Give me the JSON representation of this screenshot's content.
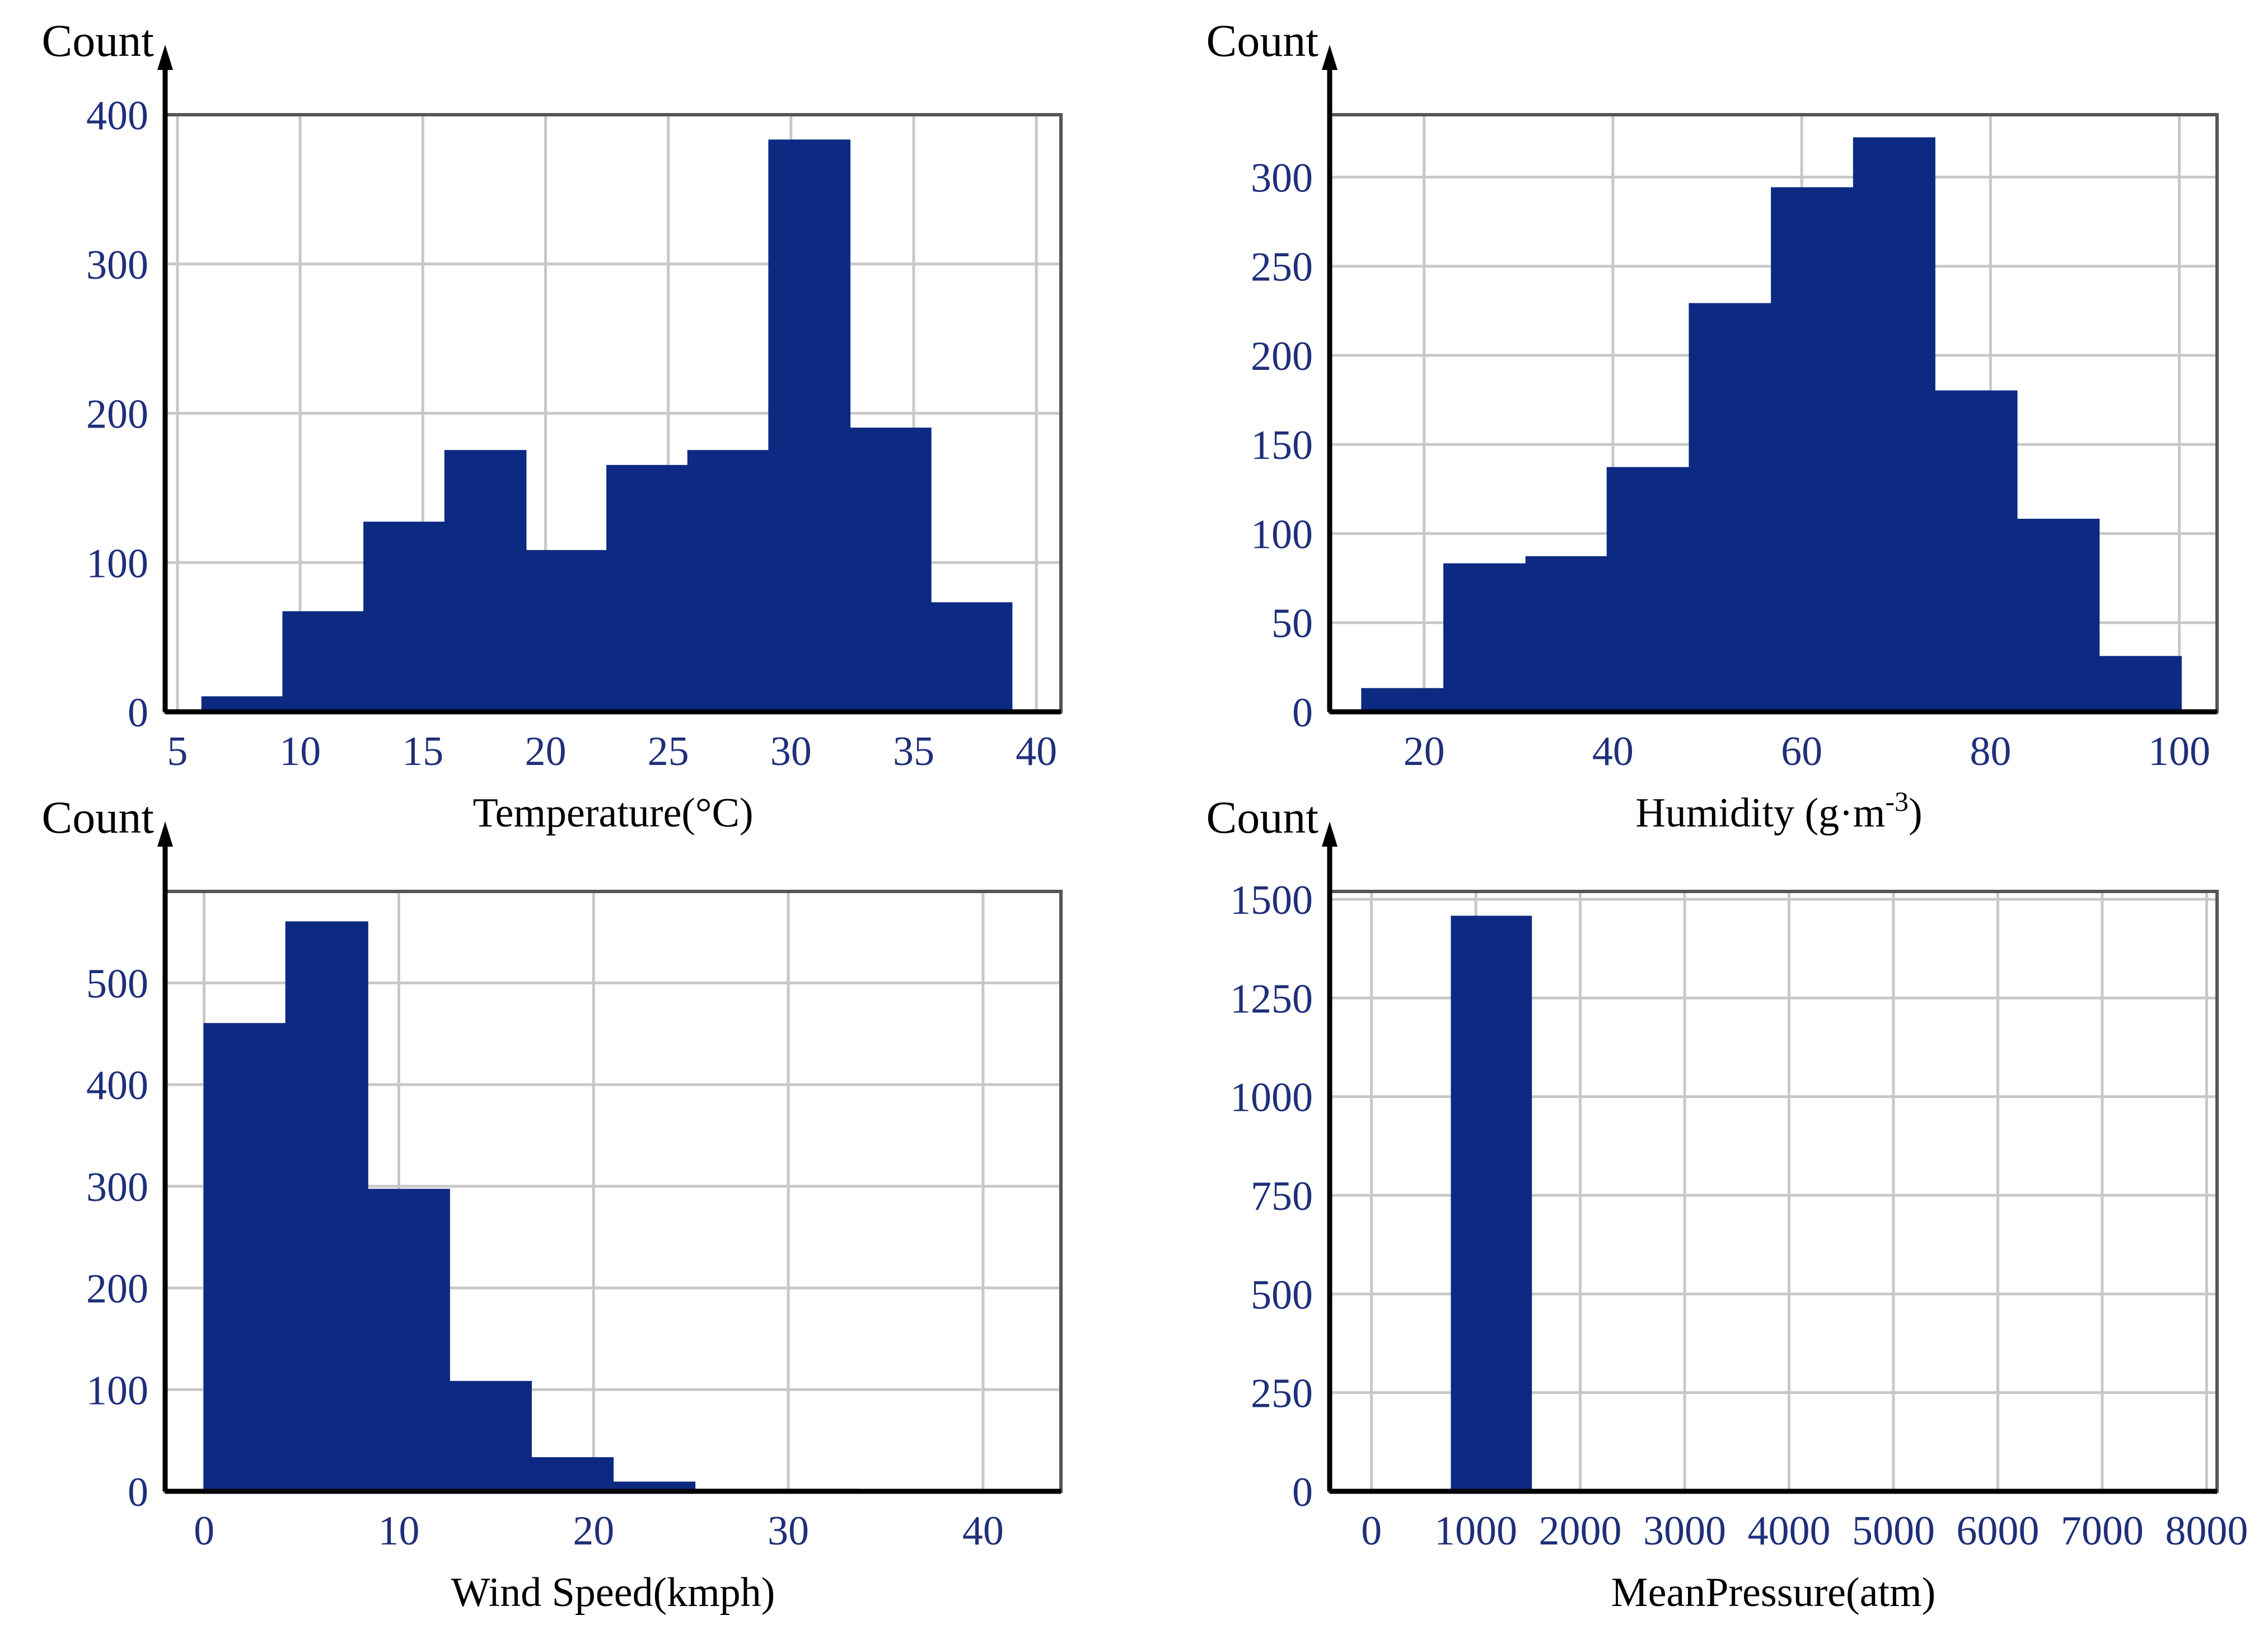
{
  "colors": {
    "bar": "#0c2a82",
    "grid": "#c8c8c8",
    "tick": "#1f2f7a"
  },
  "chart_data": [
    {
      "type": "bar",
      "title": "",
      "ylabel": "Count",
      "xlabel": "Temperature(°C)",
      "bin_edges": [
        6,
        9.3,
        12.6,
        15.9,
        19.2,
        22.5,
        25.8,
        29.1,
        32.4,
        35.7,
        39
      ],
      "values": [
        10,
        67,
        127,
        175,
        108,
        165,
        175,
        383,
        190,
        73
      ],
      "xlim": [
        4.5,
        41
      ],
      "ylim": [
        0,
        400
      ],
      "xticks": [
        5,
        10,
        15,
        20,
        25,
        30,
        35,
        40
      ],
      "yticks": [
        0,
        100,
        200,
        300,
        400
      ]
    },
    {
      "type": "bar",
      "title": "",
      "ylabel": "Count",
      "xlabel": "Humidity (g·m",
      "xlabel_sup": "-3",
      "xlabel_end": ")",
      "bin_edges": [
        13.4,
        22.1,
        30.8,
        39.4,
        48.1,
        56.8,
        65.5,
        74.1,
        82.8,
        91.5,
        100.2
      ],
      "values": [
        13,
        83,
        87,
        137,
        229,
        294,
        322,
        180,
        108,
        31
      ],
      "xlim": [
        10,
        104
      ],
      "ylim": [
        0,
        335
      ],
      "xticks": [
        20,
        40,
        60,
        80,
        100
      ],
      "yticks": [
        0,
        50,
        100,
        150,
        200,
        250,
        300
      ]
    },
    {
      "type": "bar",
      "title": "",
      "ylabel": "Count",
      "xlabel": "Wind Speed(kmph)",
      "bin_edges": [
        0,
        4.2,
        8.4,
        12.6,
        16.8,
        21.0,
        25.2,
        29.4,
        33.6,
        37.8,
        42
      ],
      "values": [
        460,
        560,
        297,
        108,
        33,
        9,
        2,
        2,
        0,
        1
      ],
      "xlim": [
        -2,
        44
      ],
      "ylim": [
        0,
        590
      ],
      "xticks": [
        0,
        10,
        20,
        30,
        40
      ],
      "yticks": [
        0,
        100,
        200,
        300,
        400,
        500
      ]
    },
    {
      "type": "bar",
      "title": "",
      "ylabel": "Count",
      "xlabel": "MeanPressure(atm)",
      "bin_edges": [
        0,
        766,
        1532
      ],
      "values": [
        5,
        1457
      ],
      "xlim": [
        -400,
        8100
      ],
      "ylim": [
        0,
        1520
      ],
      "xticks": [
        0,
        1000,
        2000,
        3000,
        4000,
        5000,
        6000,
        7000,
        8000
      ],
      "yticks": [
        0,
        250,
        500,
        750,
        1000,
        1250,
        1500
      ],
      "ytick_labels": [
        "0",
        "250",
        "500",
        "750",
        "1000",
        "1250",
        "1500"
      ]
    }
  ]
}
